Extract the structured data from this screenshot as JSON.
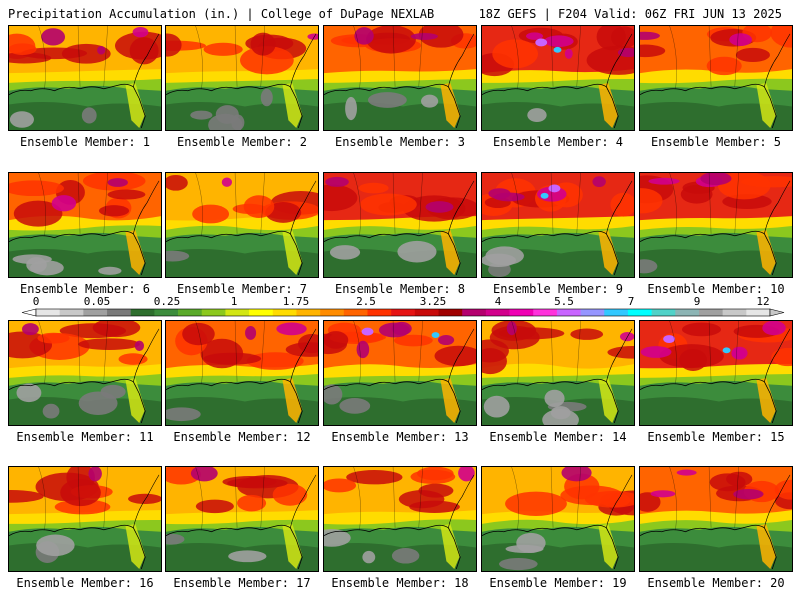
{
  "header": {
    "left": "Precipitation Accumulation (in.) | College of DuPage NEXLAB",
    "right": "18Z GEFS | F204 Valid: 06Z FRI JUN 13 2025"
  },
  "members": [
    {
      "label": "Ensemble Member: 1",
      "wet": 0.55,
      "magenta": 0.25,
      "gray": 0.2
    },
    {
      "label": "Ensemble Member: 2",
      "wet": 0.4,
      "magenta": 0.05,
      "gray": 0.5
    },
    {
      "label": "Ensemble Member: 3",
      "wet": 0.65,
      "magenta": 0.2,
      "gray": 0.25
    },
    {
      "label": "Ensemble Member: 4",
      "wet": 0.8,
      "magenta": 0.35,
      "gray": 0.05
    },
    {
      "label": "Ensemble Member: 5",
      "wet": 0.6,
      "magenta": 0.15,
      "gray": 0.0
    },
    {
      "label": "Ensemble Member: 6",
      "wet": 0.7,
      "magenta": 0.2,
      "gray": 0.35
    },
    {
      "label": "Ensemble Member: 7",
      "wet": 0.55,
      "magenta": 0.05,
      "gray": 0.1
    },
    {
      "label": "Ensemble Member: 8",
      "wet": 0.75,
      "magenta": 0.2,
      "gray": 0.15
    },
    {
      "label": "Ensemble Member: 9",
      "wet": 0.85,
      "magenta": 0.4,
      "gray": 0.3
    },
    {
      "label": "Ensemble Member: 10",
      "wet": 0.85,
      "magenta": 0.3,
      "gray": 0.05
    },
    {
      "label": "Ensemble Member: 11",
      "wet": 0.55,
      "magenta": 0.15,
      "gray": 0.4
    },
    {
      "label": "Ensemble Member: 12",
      "wet": 0.65,
      "magenta": 0.15,
      "gray": 0.1
    },
    {
      "label": "Ensemble Member: 13",
      "wet": 0.7,
      "magenta": 0.35,
      "gray": 0.2
    },
    {
      "label": "Ensemble Member: 14",
      "wet": 0.55,
      "magenta": 0.15,
      "gray": 0.45
    },
    {
      "label": "Ensemble Member: 15",
      "wet": 0.8,
      "magenta": 0.4,
      "gray": 0.0
    },
    {
      "label": "Ensemble Member: 16",
      "wet": 0.55,
      "magenta": 0.1,
      "gray": 0.15
    },
    {
      "label": "Ensemble Member: 17",
      "wet": 0.4,
      "magenta": 0.05,
      "gray": 0.15
    },
    {
      "label": "Ensemble Member: 18",
      "wet": 0.45,
      "magenta": 0.1,
      "gray": 0.3
    },
    {
      "label": "Ensemble Member: 19",
      "wet": 0.4,
      "magenta": 0.1,
      "gray": 0.25
    },
    {
      "label": "Ensemble Member: 20",
      "wet": 0.65,
      "magenta": 0.3,
      "gray": 0.0
    }
  ],
  "colorbar": {
    "tick_labels": [
      "0",
      "0.05",
      "0.25",
      "1",
      "1.75",
      "2.5",
      "3.25",
      "4",
      "5.5",
      "7",
      "9",
      "12"
    ],
    "colors": [
      "#e6e6e6",
      "#c8c8c8",
      "#a0a0a0",
      "#7a7a7a",
      "#2e6e2e",
      "#3c8c3c",
      "#5aaa2a",
      "#8cc81e",
      "#d2e614",
      "#ffff00",
      "#ffdc00",
      "#ffb400",
      "#ff8c00",
      "#ff6400",
      "#ff3200",
      "#e61414",
      "#c80a0a",
      "#a00000",
      "#b4006e",
      "#d2008c",
      "#f000b4",
      "#ff32dc",
      "#c864ff",
      "#9696ff",
      "#32c8ff",
      "#00ffff",
      "#50d2c8",
      "#8cb4b4",
      "#a0a0a0",
      "#c8c8c8",
      "#e6e6e6"
    ]
  }
}
